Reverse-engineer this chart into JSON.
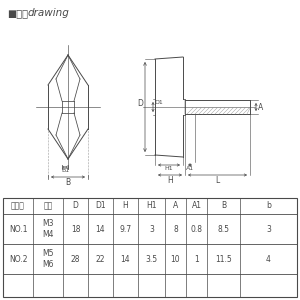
{
  "title_left": "■図面",
  "title_right": "drawing",
  "bg_color": "#ffffff",
  "line_color": "#4a4a4a",
  "dim_color": "#4a4a4a",
  "table_headers": [
    "タイプ",
    "規格",
    "D",
    "D1",
    "H",
    "H1",
    "A",
    "A1",
    "B",
    "b"
  ],
  "table_row1_col0": "NO.1",
  "table_row1_col1": "M3\nM4",
  "table_row1_data": [
    "18",
    "14",
    "9.7",
    "3",
    "8",
    "0.8",
    "8.5",
    "3"
  ],
  "table_row2_col0": "NO.2",
  "table_row2_col1": "M5\nM6",
  "table_row2_data": [
    "28",
    "22",
    "14",
    "3.5",
    "10",
    "1",
    "11.5",
    "4"
  ]
}
